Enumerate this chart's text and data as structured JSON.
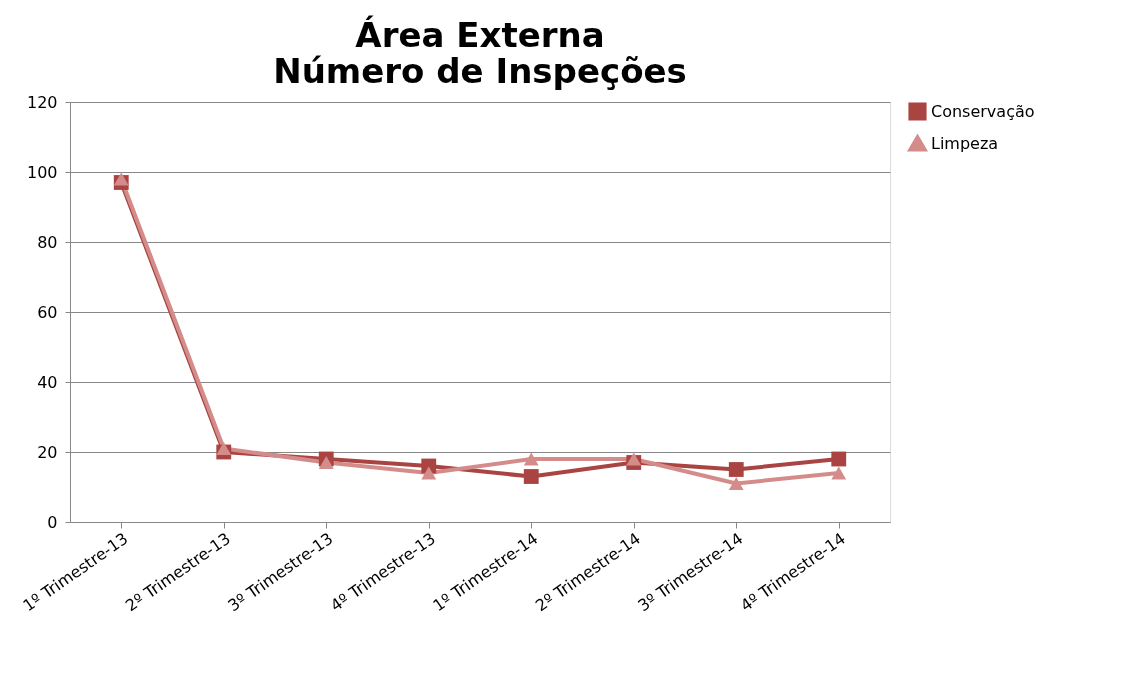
{
  "chart_data": {
    "type": "line",
    "title": [
      "Área Externa",
      "Número de Inspeções"
    ],
    "categories": [
      "1º Trimestre-13",
      "2º Trimestre-13",
      "3º Trimestre-13",
      "4º Trimestre-13",
      "1º Trimestre-14",
      "2º Trimestre-14",
      "3º Trimestre-14",
      "4º Trimestre-14"
    ],
    "series": [
      {
        "name": "Conservação",
        "color": "#a94442",
        "marker": "square",
        "values": [
          97,
          20,
          18,
          16,
          13,
          17,
          15,
          18
        ]
      },
      {
        "name": "Limpeza",
        "color": "#d48c8b",
        "marker": "triangle",
        "values": [
          98,
          21,
          17,
          14,
          18,
          18,
          11,
          14
        ]
      }
    ],
    "ylim": [
      0,
      120
    ],
    "yticks": [
      0,
      20,
      40,
      60,
      80,
      100,
      120
    ],
    "grid": "y",
    "legend": "right",
    "line_style": "solid"
  }
}
